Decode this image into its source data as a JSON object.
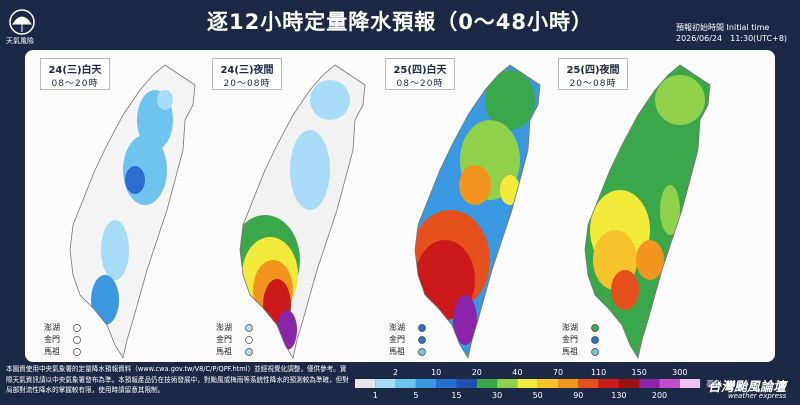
{
  "header": {
    "logo": "天氣風險",
    "title": "逐12小時定量降水預報（0～48小時）",
    "init_label": "預報初始時間 Initial time",
    "init_time": "2026/06/24　11:30(UTC+8)"
  },
  "panels": [
    {
      "date": "24(三)白天",
      "hours": "08～20時",
      "islands": [
        "澎湖",
        "金門",
        "馬祖"
      ]
    },
    {
      "date": "24(三)夜間",
      "hours": "20～08時",
      "islands": [
        "澎湖",
        "金門",
        "馬祖"
      ]
    },
    {
      "date": "25(四)白天",
      "hours": "08～20時",
      "islands": [
        "澎湖",
        "金門",
        "馬祖"
      ]
    },
    {
      "date": "25(四)夜間",
      "hours": "20～08時",
      "islands": [
        "澎湖",
        "金門",
        "馬祖"
      ]
    }
  ],
  "legend": {
    "upper": [
      2,
      10,
      20,
      40,
      70,
      110,
      150,
      300
    ],
    "lower": [
      1,
      5,
      15,
      30,
      50,
      90,
      130,
      200
    ],
    "unit": "毫米",
    "colors": [
      "#e6e6e6",
      "#a6dcf5",
      "#6fc3ef",
      "#3a98e0",
      "#2a6fcf",
      "#1f4fb0",
      "#3aa84a",
      "#8fd14a",
      "#f2ea3a",
      "#f6c42a",
      "#f2951f",
      "#e6501c",
      "#cc1a1a",
      "#9e1010",
      "#8a24a8",
      "#c04fd0",
      "#f0c2ee"
    ]
  },
  "footer": {
    "note": "本圖資使用中央氣象署的定量降水預報資料（www.cwa.gov.tw/V8/C/P/QPF.html）並經視覺化調整，僅供參考。實際天氣資訊請以中央氣象署發布為準。本預報產品仍在技術發展中，對颱風或梅雨等系統性降水的預測較為準確，但對局部對流性降水的掌握較有限，使用時請留意其限制。",
    "brand": "台灣颱風論壇",
    "brand_en": "weather express"
  }
}
